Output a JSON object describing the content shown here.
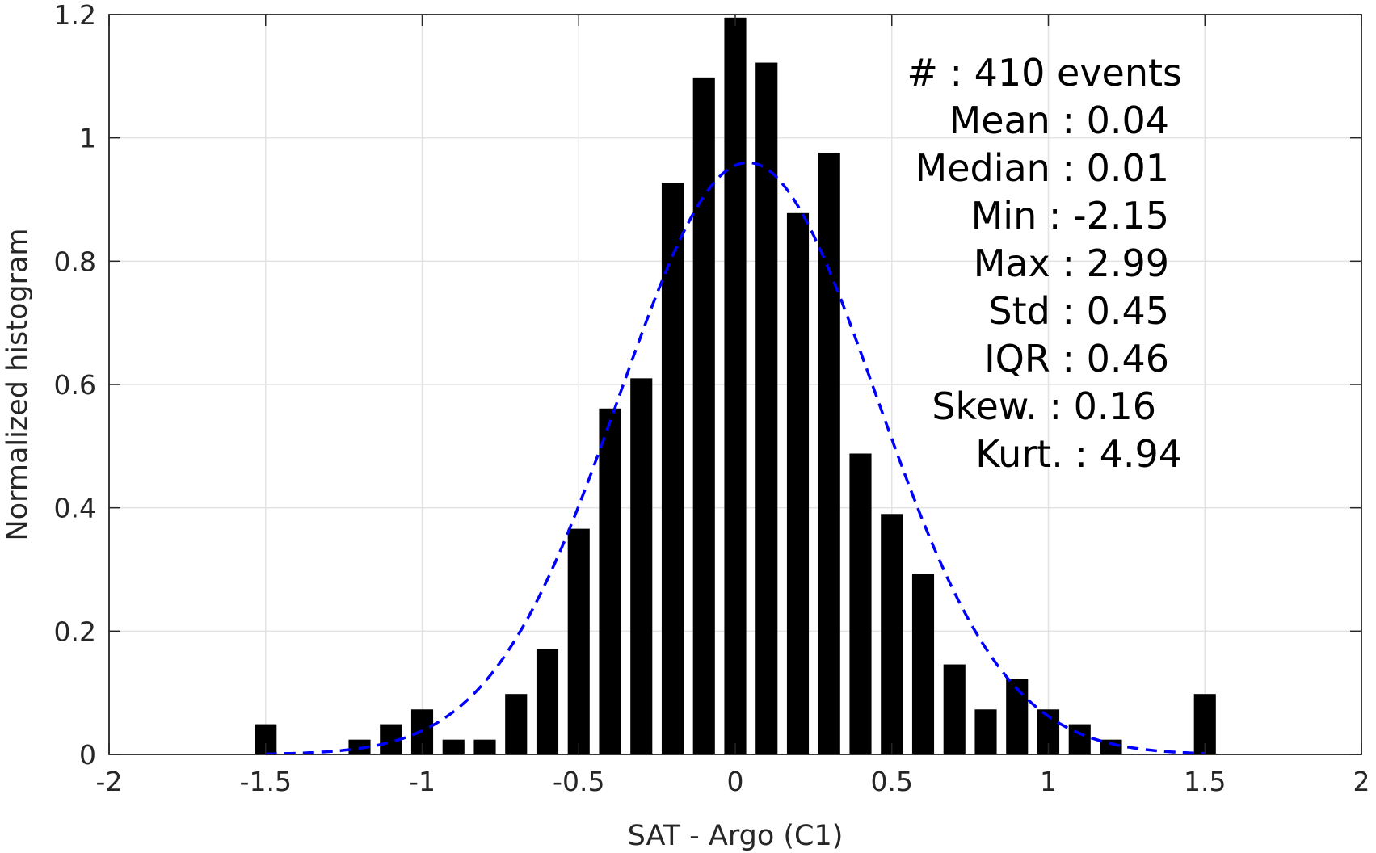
{
  "chart_data": {
    "type": "bar",
    "xlabel": "SAT - Argo (C1)",
    "ylabel": "Normalized histogram",
    "xlim": [
      -2,
      2
    ],
    "ylim": [
      0,
      1.2
    ],
    "grid": true,
    "xticks": [
      -2,
      -1.5,
      -1,
      -0.5,
      0,
      0.5,
      1,
      1.5,
      2
    ],
    "xtick_labels": [
      "-2",
      "-1.5",
      "-1",
      "-0.5",
      "0",
      "0.5",
      "1",
      "1.5",
      "2"
    ],
    "yticks": [
      0,
      0.2,
      0.4,
      0.6,
      0.8,
      1,
      1.2
    ],
    "ytick_labels": [
      "0",
      "0.2",
      "0.4",
      "0.6",
      "0.8",
      "1",
      "1.2"
    ],
    "bar_color": "#000000",
    "bins": [
      {
        "x": -1.5,
        "value": 0.049
      },
      {
        "x": -1.2,
        "value": 0.024
      },
      {
        "x": -1.1,
        "value": 0.049
      },
      {
        "x": -1.0,
        "value": 0.073
      },
      {
        "x": -0.9,
        "value": 0.024
      },
      {
        "x": -0.8,
        "value": 0.024
      },
      {
        "x": -0.7,
        "value": 0.098
      },
      {
        "x": -0.6,
        "value": 0.171
      },
      {
        "x": -0.5,
        "value": 0.366
      },
      {
        "x": -0.4,
        "value": 0.561
      },
      {
        "x": -0.3,
        "value": 0.61
      },
      {
        "x": -0.2,
        "value": 0.927
      },
      {
        "x": -0.1,
        "value": 1.098
      },
      {
        "x": 0.0,
        "value": 1.195
      },
      {
        "x": 0.1,
        "value": 1.122
      },
      {
        "x": 0.2,
        "value": 0.878
      },
      {
        "x": 0.3,
        "value": 0.976
      },
      {
        "x": 0.4,
        "value": 0.488
      },
      {
        "x": 0.5,
        "value": 0.39
      },
      {
        "x": 0.6,
        "value": 0.293
      },
      {
        "x": 0.7,
        "value": 0.146
      },
      {
        "x": 0.8,
        "value": 0.073
      },
      {
        "x": 0.9,
        "value": 0.122
      },
      {
        "x": 1.0,
        "value": 0.073
      },
      {
        "x": 1.1,
        "value": 0.049
      },
      {
        "x": 1.2,
        "value": 0.024
      },
      {
        "x": 1.5,
        "value": 0.098
      }
    ],
    "fit_curve": {
      "style": "dashed",
      "color": "#0000ff",
      "mean": 0.04,
      "std": 0.41,
      "peak": 0.96,
      "x_range": [
        -1.5,
        1.5
      ]
    },
    "stats_lines": [
      "#  : 410 events",
      "Mean : 0.04",
      "Median : 0.01",
      "Min : -2.15",
      "Max : 2.99",
      "Std : 0.45",
      "IQR : 0.46",
      "Skew. : 0.16",
      "Kurt. : 4.94"
    ]
  }
}
